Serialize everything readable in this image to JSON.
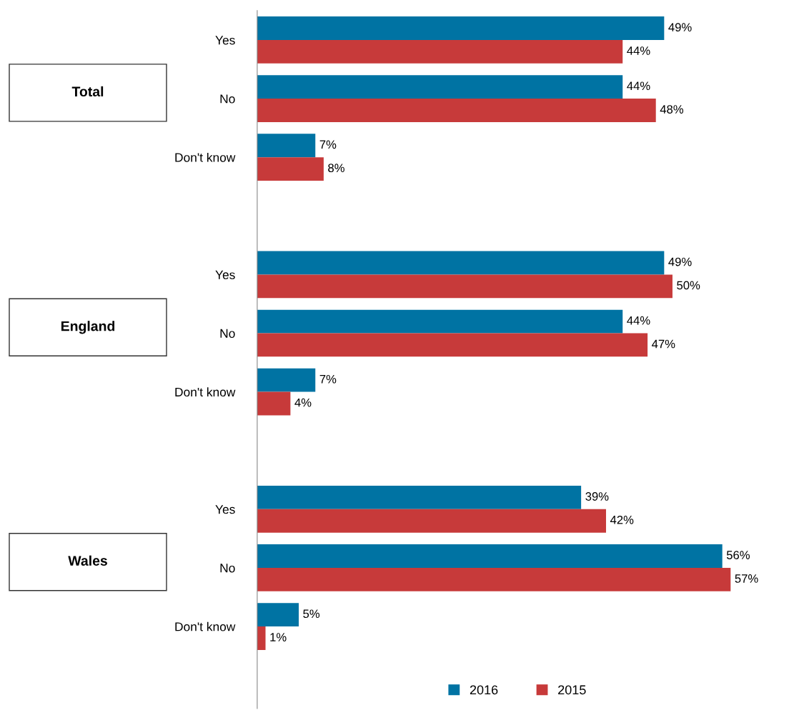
{
  "chart_data": {
    "type": "bar",
    "orientation": "horizontal",
    "categories": [
      "Yes",
      "No",
      "Don't know",
      null,
      "Yes",
      "No",
      "Don't know",
      null,
      "Yes",
      "No",
      "Don't know"
    ],
    "series": [
      {
        "name": "2016",
        "color": "#0073a3",
        "values": [
          49,
          44,
          7,
          null,
          49,
          44,
          7,
          null,
          39,
          56,
          5
        ],
        "value_labels": [
          "49%",
          "44%",
          "7%",
          null,
          "49%",
          "44%",
          "7%",
          null,
          "39%",
          "56%",
          "5%"
        ]
      },
      {
        "name": "2015",
        "color": "#c73a3a",
        "values": [
          44,
          48,
          8,
          null,
          50,
          47,
          4,
          null,
          42,
          57,
          1
        ],
        "value_labels": [
          "44%",
          "48%",
          "8%",
          null,
          "50%",
          "47%",
          "4%",
          null,
          "42%",
          "57%",
          "1%"
        ]
      }
    ],
    "annotations": [
      "Total",
      "England",
      "Wales"
    ],
    "legend": "bottom",
    "grid": false
  }
}
